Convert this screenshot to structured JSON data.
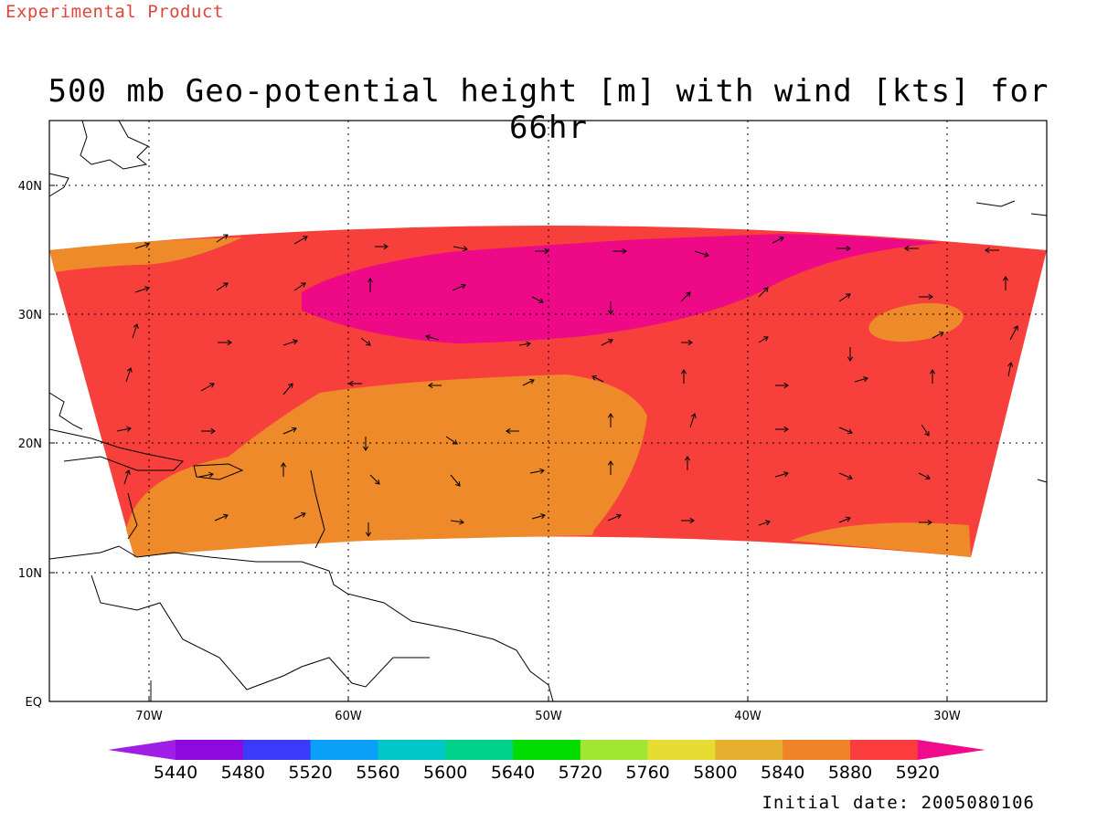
{
  "header": {
    "tag": "Experimental Product",
    "title": "500 mb Geo-potential height [m] with wind [kts] for 66hr"
  },
  "map": {
    "lon_labels": [
      "70W",
      "60W",
      "50W",
      "40W",
      "30W"
    ],
    "lat_labels": [
      "40N",
      "30N",
      "20N",
      "10N",
      "EQ"
    ],
    "lon_range": [
      -75,
      -25
    ],
    "lat_range": [
      0,
      45
    ],
    "grid": "dotted",
    "fill_colors": {
      "band_5840_5880": "#ee8a2a",
      "band_5880_5920": "#f7403c",
      "band_above_5920": "#ee0a86"
    }
  },
  "colorbar": {
    "labels": [
      "5440",
      "5480",
      "5520",
      "5560",
      "5600",
      "5640",
      "5720",
      "5760",
      "5800",
      "5840",
      "5880",
      "5920"
    ],
    "colors": [
      "#a01fe6",
      "#8c0ae0",
      "#3a3af8",
      "#0aa0f8",
      "#00c8c8",
      "#00d28c",
      "#00dc00",
      "#a0e632",
      "#e6dc32",
      "#e6af2d",
      "#f08228",
      "#fa3c3c",
      "#f00a8c"
    ]
  },
  "footer": {
    "initial_date": "Initial date: 2005080106"
  }
}
